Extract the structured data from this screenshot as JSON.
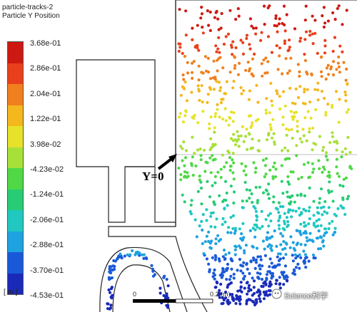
{
  "header": {
    "title": "particle-tracks-2",
    "subtitle": "Particle Y Position"
  },
  "legend": {
    "unit": "[ m ]",
    "ticks": [
      "3.68e-01",
      "2.86e-01",
      "2.04e-01",
      "1.22e-01",
      "3.98e-02",
      "-4.23e-02",
      "-1.24e-01",
      "-2.06e-01",
      "-2.88e-01",
      "-3.70e-01",
      "-4.53e-01"
    ],
    "colors": [
      "#cc1a12",
      "#e8401c",
      "#f0801e",
      "#f4b81e",
      "#e6e22a",
      "#a8e03a",
      "#50d846",
      "#28cc74",
      "#20c8c0",
      "#1ea2e0",
      "#1a5ad8",
      "#1a2ab8"
    ]
  },
  "annotation": {
    "label": "Y=0"
  },
  "scale_bar": {
    "start_label": "0",
    "end_label": "0.2 (m)"
  },
  "watermark": {
    "text": "Science科学"
  }
}
